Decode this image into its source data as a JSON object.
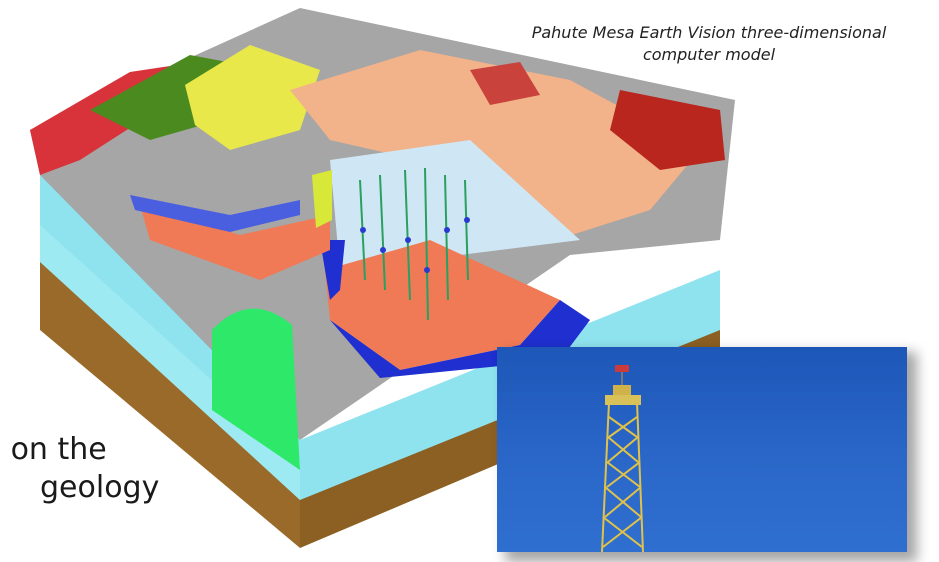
{
  "caption": {
    "line1": "Pahute Mesa Earth Vision three-dimensional",
    "line2": "computer model"
  },
  "body_text": {
    "line1": "d on the",
    "line2": "geology"
  },
  "colors": {
    "surface_gray": "#a6a6a6",
    "aquifer_cyan": "#8fe3ee",
    "basement_brown": "#9a6a2a",
    "salmon_unit": "#f07a55",
    "blue_unit": "#1f2fd0",
    "green_unit": "#2ee86a",
    "sky_blue": "#2a67c8"
  },
  "icons": {
    "model": "geologic-block-model-image",
    "photo": "drill-rig-tower-photo"
  }
}
